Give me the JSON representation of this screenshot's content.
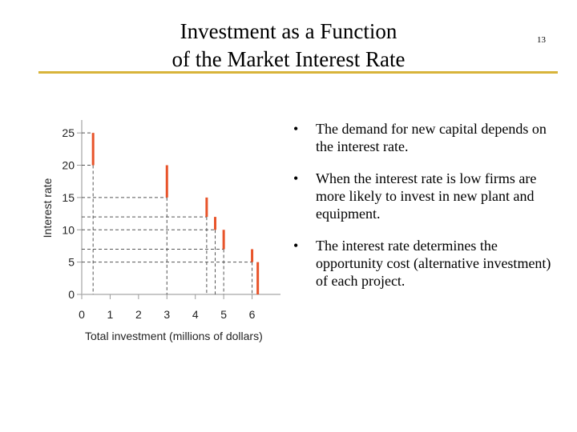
{
  "slide": {
    "title_line1": "Investment as a Function",
    "title_line2": "of the Market Interest Rate",
    "number": "13"
  },
  "bullets": [
    "The demand for new capital depends on the interest rate.",
    "When the interest rate is low firms are more likely to invest in new plant and equipment.",
    "The interest rate determines the opportunity cost (alternative investment) of each project."
  ],
  "colors": {
    "accent_rule": "#d8b43a",
    "step": "#e8542a",
    "guide": "#555555"
  },
  "chart_data": {
    "type": "line",
    "xlabel": "Total investment (millions of dollars)",
    "ylabel": "Interest rate",
    "xlim": [
      0,
      7
    ],
    "ylim": [
      0,
      27
    ],
    "x_ticks": [
      0,
      1,
      2,
      3,
      4,
      5,
      6
    ],
    "y_ticks": [
      0,
      5,
      10,
      15,
      20,
      25
    ],
    "grid": false,
    "steps": [
      {
        "x": 0.4,
        "y_top": 25,
        "y_bottom": 20
      },
      {
        "x": 3.0,
        "y_top": 20,
        "y_bottom": 15
      },
      {
        "x": 4.4,
        "y_top": 15,
        "y_bottom": 12
      },
      {
        "x": 4.7,
        "y_top": 12,
        "y_bottom": 10
      },
      {
        "x": 5.0,
        "y_top": 10,
        "y_bottom": 7
      },
      {
        "x": 6.0,
        "y_top": 7,
        "y_bottom": 5
      },
      {
        "x": 6.2,
        "y_top": 5,
        "y_bottom": 0
      }
    ]
  }
}
